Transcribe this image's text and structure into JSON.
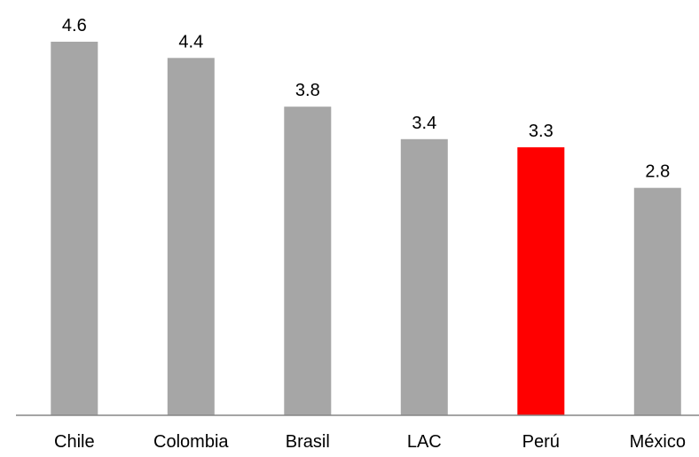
{
  "chart_data": {
    "type": "bar",
    "title": "",
    "xlabel": "",
    "ylabel": "",
    "categories": [
      "Chile",
      "Colombia",
      "Brasil",
      "LAC",
      "Perú",
      "México"
    ],
    "values": [
      4.6,
      4.4,
      3.8,
      3.4,
      3.3,
      2.8
    ],
    "data_labels": [
      "4.6",
      "4.4",
      "3.8",
      "3.4",
      "3.3",
      "2.8"
    ],
    "highlight_category": "Perú",
    "colors": {
      "bar": "#a6a6a6",
      "highlight": "#ff0000",
      "axis": "#868686"
    },
    "ylim": [
      0,
      4.6
    ],
    "grid": false,
    "legend": "none"
  }
}
